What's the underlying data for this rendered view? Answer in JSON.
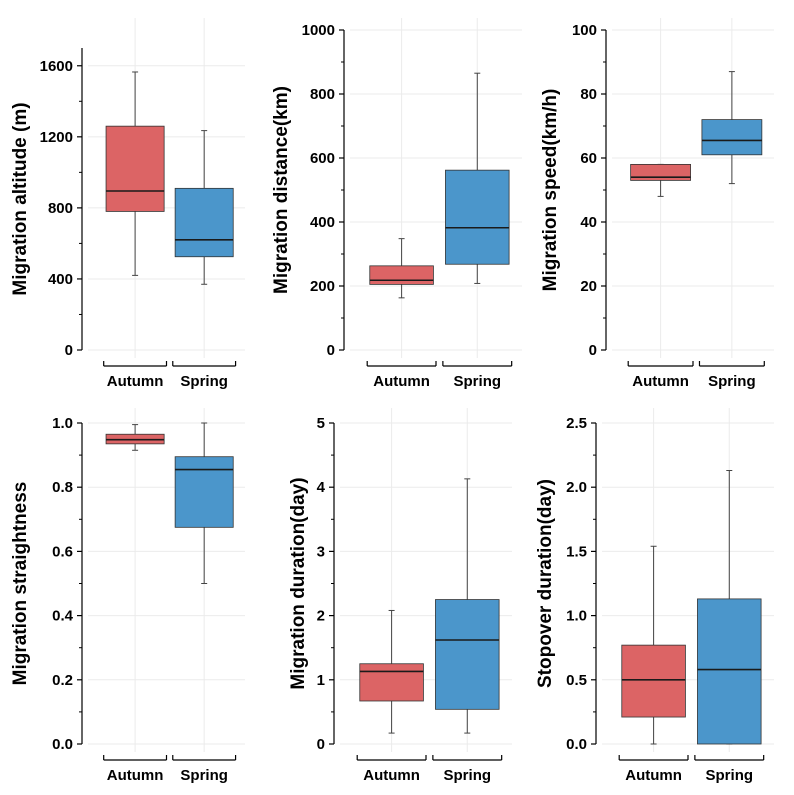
{
  "colors": {
    "autumn": "#dc6465",
    "spring": "#4b96cb",
    "grid": "#ebebeb",
    "axis": "#000000",
    "median": "#1a1a1a"
  },
  "chart_data": [
    {
      "type": "boxplot",
      "ylabel": "Migration altitude (m)",
      "ylim": [
        0,
        1700
      ],
      "yticks": [
        0,
        400,
        800,
        1200,
        1600
      ],
      "tick_labels": [
        "0",
        "400",
        "800",
        "1200",
        "1600"
      ],
      "categories": [
        "Autumn",
        "Spring"
      ],
      "boxes": [
        {
          "name": "Autumn",
          "min": 420,
          "q1": 780,
          "median": 895,
          "q3": 1260,
          "max": 1565
        },
        {
          "name": "Spring",
          "min": 370,
          "q1": 525,
          "median": 620,
          "q3": 910,
          "max": 1235
        }
      ]
    },
    {
      "type": "boxplot",
      "ylabel": "Migration distance(km)",
      "ylim": [
        0,
        1000
      ],
      "yticks": [
        0,
        200,
        400,
        600,
        800,
        1000
      ],
      "tick_labels": [
        "0",
        "200",
        "400",
        "600",
        "800",
        "1000"
      ],
      "categories": [
        "Autumn",
        "Spring"
      ],
      "boxes": [
        {
          "name": "Autumn",
          "min": 163,
          "q1": 205,
          "median": 218,
          "q3": 263,
          "max": 348
        },
        {
          "name": "Spring",
          "min": 208,
          "q1": 268,
          "median": 382,
          "q3": 562,
          "max": 865
        }
      ]
    },
    {
      "type": "boxplot",
      "ylabel": "Migration speed(km/h)",
      "ylim": [
        0,
        100
      ],
      "yticks": [
        0,
        20,
        40,
        60,
        80,
        100
      ],
      "tick_labels": [
        "0",
        "20",
        "40",
        "60",
        "80",
        "100"
      ],
      "categories": [
        "Autumn",
        "Spring"
      ],
      "boxes": [
        {
          "name": "Autumn",
          "min": 48,
          "q1": 53,
          "median": 54,
          "q3": 58,
          "max": 58
        },
        {
          "name": "Spring",
          "min": 52,
          "q1": 61,
          "median": 65.5,
          "q3": 72,
          "max": 87
        }
      ]
    },
    {
      "type": "boxplot",
      "ylabel": "Migration straightness",
      "ylim": [
        0,
        1.0
      ],
      "yticks": [
        0,
        0.2,
        0.4,
        0.6,
        0.8,
        1.0
      ],
      "tick_labels": [
        "0.0",
        "0.2",
        "0.4",
        "0.6",
        "0.8",
        "1.0"
      ],
      "categories": [
        "Autumn",
        "Spring"
      ],
      "boxes": [
        {
          "name": "Autumn",
          "min": 0.915,
          "q1": 0.935,
          "median": 0.948,
          "q3": 0.965,
          "max": 0.995
        },
        {
          "name": "Spring",
          "min": 0.5,
          "q1": 0.675,
          "median": 0.855,
          "q3": 0.895,
          "max": 1.0
        }
      ]
    },
    {
      "type": "boxplot",
      "ylabel": "Migration duration(day)",
      "ylim": [
        0,
        5
      ],
      "yticks": [
        0,
        1,
        2,
        3,
        4,
        5
      ],
      "tick_labels": [
        "0",
        "1",
        "2",
        "3",
        "4",
        "5"
      ],
      "categories": [
        "Autumn",
        "Spring"
      ],
      "boxes": [
        {
          "name": "Autumn",
          "min": 0.17,
          "q1": 0.67,
          "median": 1.13,
          "q3": 1.25,
          "max": 2.08
        },
        {
          "name": "Spring",
          "min": 0.17,
          "q1": 0.54,
          "median": 1.62,
          "q3": 2.25,
          "max": 4.13
        }
      ]
    },
    {
      "type": "boxplot",
      "ylabel": "Stopover duration(day)",
      "ylim": [
        0,
        2.5
      ],
      "yticks": [
        0,
        0.5,
        1.0,
        1.5,
        2.0,
        2.5
      ],
      "tick_labels": [
        "0.0",
        "0.5",
        "1.0",
        "1.5",
        "2.0",
        "2.5"
      ],
      "categories": [
        "Autumn",
        "Spring"
      ],
      "boxes": [
        {
          "name": "Autumn",
          "min": 0.0,
          "q1": 0.21,
          "median": 0.5,
          "q3": 0.77,
          "max": 1.54
        },
        {
          "name": "Spring",
          "min": 0.0,
          "q1": 0.0,
          "median": 0.58,
          "q3": 1.13,
          "max": 2.13
        }
      ]
    }
  ]
}
